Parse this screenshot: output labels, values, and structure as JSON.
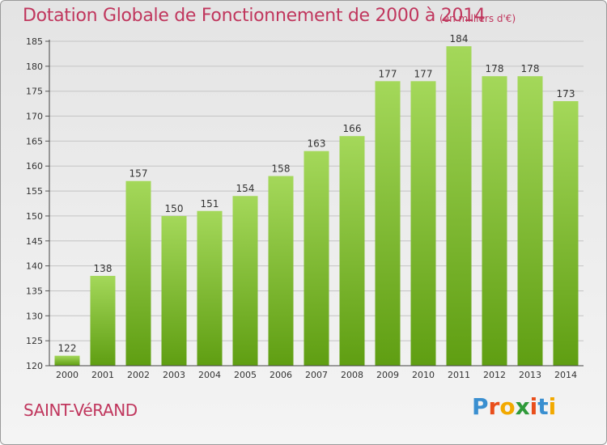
{
  "title": "Dotation Globale de Fonctionnement de 2000 à 2014",
  "unit_note": "(en milliers d'€)",
  "commune": "SAINT-VéRAND",
  "brand": {
    "letters": [
      "P",
      "r",
      "o",
      "x",
      "i",
      "t",
      "i"
    ],
    "colors": [
      "#3a8fd0",
      "#e94e1b",
      "#f2a900",
      "#2f9a3a",
      "#e94e1b",
      "#3a8fd0",
      "#f2a900"
    ]
  },
  "colors": {
    "bar_top": "#a4d85a",
    "bar_bottom": "#5f9e12",
    "title": "#c0365d"
  },
  "chart_data": {
    "type": "bar",
    "title": "Dotation Globale de Fonctionnement de 2000 à 2014",
    "categories": [
      "2000",
      "2001",
      "2002",
      "2003",
      "2004",
      "2005",
      "2006",
      "2007",
      "2008",
      "2009",
      "2010",
      "2011",
      "2012",
      "2013",
      "2014"
    ],
    "values": [
      122,
      138,
      157,
      150,
      151,
      154,
      158,
      163,
      166,
      177,
      177,
      184,
      178,
      178,
      173
    ],
    "ylim": [
      120,
      185
    ],
    "yticks": [
      120,
      125,
      130,
      135,
      140,
      145,
      150,
      155,
      160,
      165,
      170,
      175,
      180,
      185
    ],
    "grid": true,
    "data_labels": true
  }
}
